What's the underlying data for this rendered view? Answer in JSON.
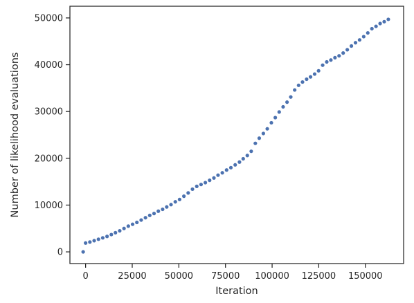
{
  "chart_data": {
    "type": "scatter",
    "title": "",
    "xlabel": "Iteration",
    "ylabel": "Number of likelihood evaluations",
    "xlim": [
      -8400,
      170500
    ],
    "ylim": [
      -2500,
      52500
    ],
    "xticks": [
      0,
      25000,
      50000,
      75000,
      100000,
      125000,
      150000
    ],
    "xtick_labels": [
      "0",
      "25000",
      "50000",
      "75000",
      "100000",
      "125000",
      "150000"
    ],
    "yticks": [
      0,
      10000,
      20000,
      30000,
      40000,
      50000
    ],
    "ytick_labels": [
      "0",
      "10000",
      "20000",
      "30000",
      "40000",
      "50000"
    ],
    "grid": false,
    "marker_color": "#4c72b0",
    "series": [
      {
        "x": [
          -1300,
          0,
          2300,
          4600,
          6900,
          9200,
          11500,
          13800,
          16000,
          18300,
          20600,
          22900,
          25200,
          27500,
          29800,
          32100,
          34400,
          36700,
          39000,
          41300,
          43500,
          45800,
          48100,
          50400,
          52700,
          55000,
          57300,
          59600,
          61900,
          64200,
          66500,
          68800,
          71000,
          73300,
          75600,
          77900,
          80200,
          82500,
          84500,
          86700,
          88800,
          91000,
          93100,
          95300,
          97400,
          99600,
          101700,
          103800,
          105900,
          108000,
          110000,
          112100,
          114200,
          116300,
          118500,
          120600,
          122800,
          124900,
          127100,
          129300,
          131500,
          133700,
          135900,
          138100,
          140300,
          142500,
          144700,
          146900,
          149100,
          151300,
          153500,
          155700,
          157900,
          160100,
          162300
        ],
        "y": [
          0,
          1900,
          2100,
          2400,
          2700,
          3000,
          3300,
          3700,
          4100,
          4500,
          5000,
          5500,
          5900,
          6300,
          6800,
          7300,
          7800,
          8200,
          8700,
          9100,
          9600,
          10100,
          10700,
          11200,
          11900,
          12600,
          13400,
          14000,
          14400,
          14800,
          15300,
          15800,
          16400,
          16900,
          17500,
          18000,
          18600,
          19200,
          19900,
          20600,
          21500,
          23200,
          24300,
          25300,
          26300,
          27600,
          28700,
          29900,
          31000,
          32000,
          33100,
          34600,
          35600,
          36300,
          36900,
          37400,
          38000,
          38700,
          39900,
          40600,
          41000,
          41500,
          41900,
          42500,
          43200,
          44000,
          44700,
          45300,
          46000,
          46800,
          47700,
          48200,
          48800,
          49200,
          49700
        ]
      }
    ]
  }
}
